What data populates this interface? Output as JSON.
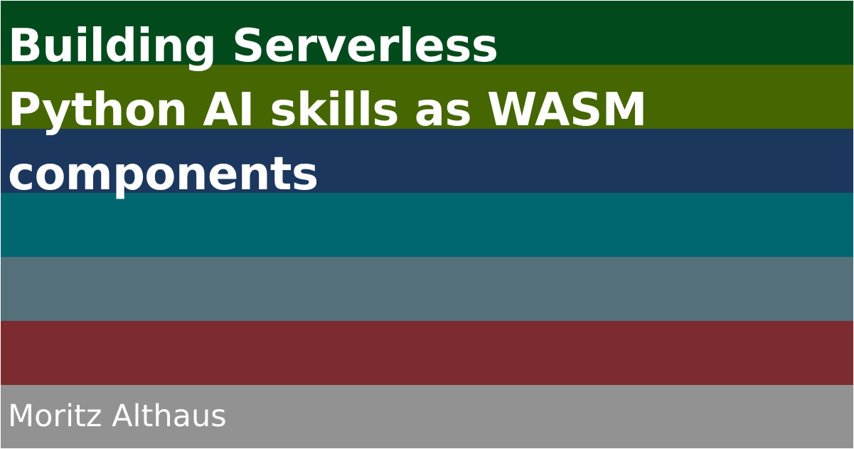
{
  "title_lines": [
    "Building Serverless",
    "Python AI skills as WASM",
    "components"
  ],
  "author": "Moritz Althaus",
  "colors": {
    "text": "#ffffff",
    "stripes": [
      "#004a1c",
      "#456600",
      "#1c375d",
      "#006670",
      "#54707a",
      "#7c2b30",
      "#929292"
    ]
  }
}
